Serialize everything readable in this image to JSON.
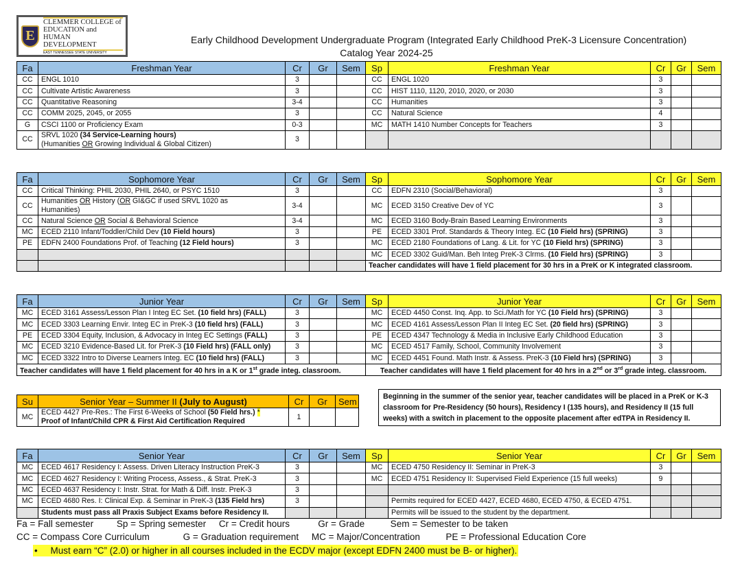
{
  "logo": {
    "line1": "CLEMMER COLLEGE of",
    "line2": "EDUCATION and",
    "line3": "HUMAN DEVELOPMENT",
    "line4": "EAST TENNESSEE STATE UNIVERSITY",
    "letter": "E"
  },
  "header": {
    "title": "Early Childhood Development Undergraduate Program (Integrated Early Childhood PreK-3 Licensure Concentration)",
    "catalog": "Catalog Year 2024-25"
  },
  "colors": {
    "fall_header": "#9dc3e6",
    "spring_header": "#ffff33",
    "summer_header": "#ffc000",
    "empty_cell": "#e3e3e3"
  },
  "col_headers": {
    "cr": "Cr",
    "gr": "Gr",
    "sem": "Sem"
  },
  "sections": {
    "freshman": {
      "left_term": "Fa",
      "left_title": "Freshman Year",
      "right_term": "Sp",
      "right_title": "Freshman Year",
      "rows": [
        [
          {
            "code": "CC",
            "course": [
              "ENGL 1010"
            ],
            "cr": "3"
          },
          {
            "code": "CC",
            "course": [
              "ENGL 1020"
            ],
            "cr": "3"
          }
        ],
        [
          {
            "code": "CC",
            "course": [
              "Cultivate Artistic Awareness"
            ],
            "cr": "3"
          },
          {
            "code": "CC",
            "course": [
              "HIST 1110, 1120, 2010, 2020, or 2030"
            ],
            "cr": "3"
          }
        ],
        [
          {
            "code": "CC",
            "course": [
              "Quantitative Reasoning"
            ],
            "cr": "3-4"
          },
          {
            "code": "CC",
            "course": [
              "Humanities"
            ],
            "cr": "3"
          }
        ],
        [
          {
            "code": "CC",
            "course": [
              "COMM 2025, 2045, or 2055"
            ],
            "cr": "3"
          },
          {
            "code": "CC",
            "course": [
              "Natural Science"
            ],
            "cr": "4"
          }
        ],
        [
          {
            "code": "G",
            "course": [
              "CSCI 1100 or Proficiency Exam"
            ],
            "cr": "0-3"
          },
          {
            "code": "MC",
            "course": [
              "MATH 1410  Number Concepts for Teachers"
            ],
            "cr": "3"
          }
        ],
        [
          {
            "code": "CC",
            "course": [
              "SRVL 1020 ",
              {
                "b": "(34 Service-Learning hours)"
              },
              {
                "br": true
              },
              "(Humanities ",
              {
                "u": "OR"
              },
              " Growing Individual & Global Citizen)"
            ],
            "cr": "3"
          },
          {
            "gray": true
          }
        ]
      ]
    },
    "sophomore": {
      "left_term": "Fa",
      "left_title": "Sophomore Year",
      "right_term": "Sp",
      "right_title": "Sophomore Year",
      "rows": [
        [
          {
            "code": "CC",
            "course": [
              "Critical Thinking: PHIL 2030, PHIL 2640, or PSYC 1510"
            ],
            "cr": "3"
          },
          {
            "code": "CC",
            "course": [
              "EDFN 2310 (Social/Behavioral)"
            ],
            "cr": "3"
          }
        ],
        [
          {
            "code": "CC",
            "course": [
              "Humanities ",
              {
                "u": "OR"
              },
              " History (",
              {
                "u": "OR"
              },
              " GI&GC if used SRVL 1020 as",
              {
                "br": true
              },
              "Humanities)"
            ],
            "cr": "3-4"
          },
          {
            "code": "MC",
            "course": [
              "ECED 3150  Creative Dev of YC"
            ],
            "cr": "3"
          }
        ],
        [
          {
            "code": "CC",
            "course": [
              "Natural Science ",
              {
                "u": "OR"
              },
              " Social & Behavioral Science"
            ],
            "cr": "3-4"
          },
          {
            "code": "MC",
            "course": [
              "ECED 3160  Body-Brain Based Learning Environments"
            ],
            "cr": "3"
          }
        ],
        [
          {
            "code": "MC",
            "course": [
              "ECED 2110  Infant/Toddler/Child Dev ",
              {
                "b": "(10 Field hours)"
              }
            ],
            "cr": "3"
          },
          {
            "code": "PE",
            "course": [
              "ECED 3301  Prof. Standards & Theory Integ. EC ",
              {
                "b": "(10 Field hrs) (SPRING)"
              }
            ],
            "cr": "3"
          }
        ],
        [
          {
            "code": "PE",
            "course": [
              "EDFN 2400  Foundations Prof. of Teaching ",
              {
                "b": "(12 Field hours)"
              }
            ],
            "cr": "3"
          },
          {
            "code": "MC",
            "course": [
              "ECED 2180  Foundations of Lang. & Lit. for YC ",
              {
                "b": "(10 Field hrs) (SPRING)"
              }
            ],
            "cr": "3"
          }
        ],
        [
          {
            "gray": true
          },
          {
            "code": "MC",
            "course": [
              "ECED 3302  Guid/Man. Beh Integ PreK-3 Clrms. ",
              {
                "b": "(10 Field hrs) (SPRING)"
              }
            ],
            "cr": "3"
          }
        ],
        [
          {
            "gray": true
          },
          {
            "note": [
              "Teacher candidates will have 1 field placement for 30 hrs in a PreK or K integrated classroom."
            ]
          }
        ]
      ]
    },
    "junior": {
      "left_term": "Fa",
      "left_title": "Junior Year",
      "right_term": "Sp",
      "right_title": "Junior Year",
      "rows": [
        [
          {
            "code": "MC",
            "course": [
              "ECED 3161  Assess/Lesson Plan I Integ EC Set. ",
              {
                "b": "(10 field hrs) (FALL)"
              }
            ],
            "cr": "3"
          },
          {
            "code": "MC",
            "course": [
              "ECED 4450  Const. Inq. App. to Sci./Math for YC ",
              {
                "b": "(10 Field hrs) (SPRING)"
              }
            ],
            "cr": "3"
          }
        ],
        [
          {
            "code": "MC",
            "course": [
              "ECED 3303  Learning Envir. Integ EC in PreK-3 ",
              {
                "b": "(10 field hrs) (FALL)"
              }
            ],
            "cr": "3"
          },
          {
            "code": "MC",
            "course": [
              "ECED 4161  Assess/Lesson Plan II Integ EC Set. ",
              {
                "b": "(20 field hrs) (SPRING)"
              }
            ],
            "cr": "3"
          }
        ],
        [
          {
            "code": "PE",
            "course": [
              "ECED 3304  Equity, Inclusion, & Advocacy in Integ EC Settings ",
              {
                "b": "(FALL)"
              }
            ],
            "cr": "3"
          },
          {
            "code": "PE",
            "course": [
              "ECED 4347  Technology & Media in Inclusive Early Childhood Education"
            ],
            "cr": "3"
          }
        ],
        [
          {
            "code": "MC",
            "course": [
              "ECED 3210  Evidence-Based Lit. for PreK-3 ",
              {
                "b": "(10 Field hrs) (FALL only)"
              }
            ],
            "cr": "3"
          },
          {
            "code": "MC",
            "course": [
              "ECED 4517  Family, School, Community Involvement"
            ],
            "cr": "3"
          }
        ],
        [
          {
            "code": "MC",
            "course": [
              "ECED 3322  Intro to Diverse Learners Integ. EC ",
              {
                "b": "(10 field hrs) (FALL)"
              }
            ],
            "cr": "3"
          },
          {
            "code": "MC",
            "course": [
              "ECED 4451  Found. Math Instr. & Assess. PreK-3 ",
              {
                "b": "(10 Field hrs) (SPRING)"
              }
            ],
            "cr": "3"
          }
        ],
        [
          {
            "note": [
              "Teacher candidates will have 1 field placement for 40 hrs in a K or 1",
              {
                "sup": "st"
              },
              " grade integ. classroom."
            ]
          },
          {
            "note": [
              "Teacher candidates will have 1 field placement for 40 hrs in a 2",
              {
                "sup": "nd"
              },
              " or 3",
              {
                "sup": "rd"
              },
              " grade integ. classroom."
            ],
            "center": true
          }
        ]
      ]
    },
    "summer": {
      "term": "Su",
      "title": "Senior Year – Summer II ",
      "title_bold": "(July to August)",
      "rows": [
        {
          "code": "MC",
          "course": [
            "ECED 4427  Pre-Res.: The First 6-Weeks of School ",
            {
              "b": "(50 Field hrs.)"
            },
            " ",
            {
              "hl": "*"
            },
            {
              "br": true
            },
            {
              "b": "Proof of Infant/Child CPR & First Aid Certification Required"
            }
          ],
          "cr": "1"
        }
      ]
    },
    "senior": {
      "left_term": "Fa",
      "left_title": "Senior Year",
      "right_term": "Sp",
      "right_title": "Senior Year",
      "rows": [
        [
          {
            "code": "MC",
            "course": [
              "ECED 4617  Residency I:  Assess. Driven Literacy Instruction PreK-3"
            ],
            "cr": "3"
          },
          {
            "code": "MC",
            "course": [
              "ECED 4750  Residency II: Seminar in PreK-3"
            ],
            "cr": "3"
          }
        ],
        [
          {
            "code": "MC",
            "course": [
              "ECED 4627  Residency I:  Writing Process, Assess., & Strat. PreK-3"
            ],
            "cr": "3"
          },
          {
            "code": "MC",
            "course": [
              "ECED 4751  Residency II: Supervised Field Experience (15 full weeks)"
            ],
            "cr": "9"
          }
        ],
        [
          {
            "code": "MC",
            "course": [
              "ECED 4637  Residency I:  Instr. Strat. for Math & Diff. Instr. PreK-3"
            ],
            "cr": "3"
          },
          {
            "gray": true
          }
        ],
        [
          {
            "code": "MC",
            "course": [
              "ECED 4680  Res. I:  Clinical Exp. & Seminar in PreK-3 ",
              {
                "b": "(135 Field hrs)"
              }
            ],
            "cr": "3"
          },
          {
            "graynote": [
              "Permits required for ECED 4427, ECED 4680, ECED 4750, & ECED 4751."
            ],
            "plain": true
          }
        ],
        [
          {
            "graynote": [
              "Students must pass all Praxis Subject Exams before Residency II."
            ]
          },
          {
            "graynote": [
              "Permits will be issued to the student by the department."
            ],
            "plain": true
          }
        ]
      ]
    }
  },
  "residency_note": "Beginning in the summer of the senior year, teacher candidates will be placed in a PreK or K-3 classroom for Pre-Residency (50 hours), Residency I (135 hours), and Residency II (15 full weeks) with a switch in placement to the opposite placement after edTPA in Residency II.",
  "legend": {
    "line1": "Fa = Fall semester         Sp = Spring semester     Cr = Credit hours           Gr = Grade          Sem = Semester to be taken",
    "line2": "CC = Compass Core Curriculum             G = Graduation requirement     MC = Major/Concentration          PE = Professional Education Core"
  },
  "requirement": "Must earn “C” (2.0) or higher in all courses included in the ECDV major (except EDFN 2400 must be B- or higher)."
}
